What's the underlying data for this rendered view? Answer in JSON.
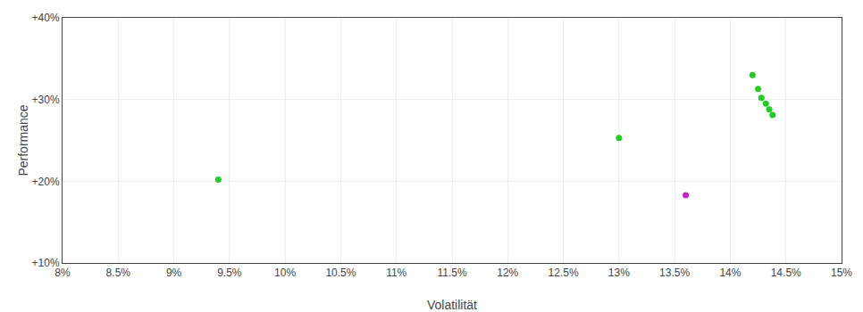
{
  "chart_data": {
    "type": "scatter",
    "xlabel": "Volatilität",
    "ylabel": "Performance",
    "xlim": [
      0.08,
      0.15
    ],
    "ylim": [
      0.1,
      0.4
    ],
    "xticks": [
      {
        "value": 0.08,
        "label": "8%"
      },
      {
        "value": 0.085,
        "label": "8.5%"
      },
      {
        "value": 0.09,
        "label": "9%"
      },
      {
        "value": 0.095,
        "label": "9.5%"
      },
      {
        "value": 0.1,
        "label": "10%"
      },
      {
        "value": 0.105,
        "label": "10.5%"
      },
      {
        "value": 0.11,
        "label": "11%"
      },
      {
        "value": 0.115,
        "label": "11.5%"
      },
      {
        "value": 0.12,
        "label": "12%"
      },
      {
        "value": 0.125,
        "label": "12.5%"
      },
      {
        "value": 0.13,
        "label": "13%"
      },
      {
        "value": 0.135,
        "label": "13.5%"
      },
      {
        "value": 0.14,
        "label": "14%"
      },
      {
        "value": 0.145,
        "label": "14.5%"
      },
      {
        "value": 0.15,
        "label": "15%"
      }
    ],
    "yticks": [
      {
        "value": 0.1,
        "label": "+10%"
      },
      {
        "value": 0.2,
        "label": "+20%"
      },
      {
        "value": 0.3,
        "label": "+30%"
      },
      {
        "value": 0.4,
        "label": "+40%"
      }
    ],
    "grid": true,
    "series": [
      {
        "color": "#22cc22",
        "x": [
          0.094,
          0.13,
          0.142,
          0.1425,
          0.1428,
          0.1432,
          0.1435,
          0.1438
        ],
        "values": [
          0.202,
          0.253,
          0.33,
          0.313,
          0.302,
          0.295,
          0.288,
          0.281
        ]
      },
      {
        "color": "#cc22cc",
        "x": [
          0.136
        ],
        "values": [
          0.183
        ]
      }
    ]
  }
}
